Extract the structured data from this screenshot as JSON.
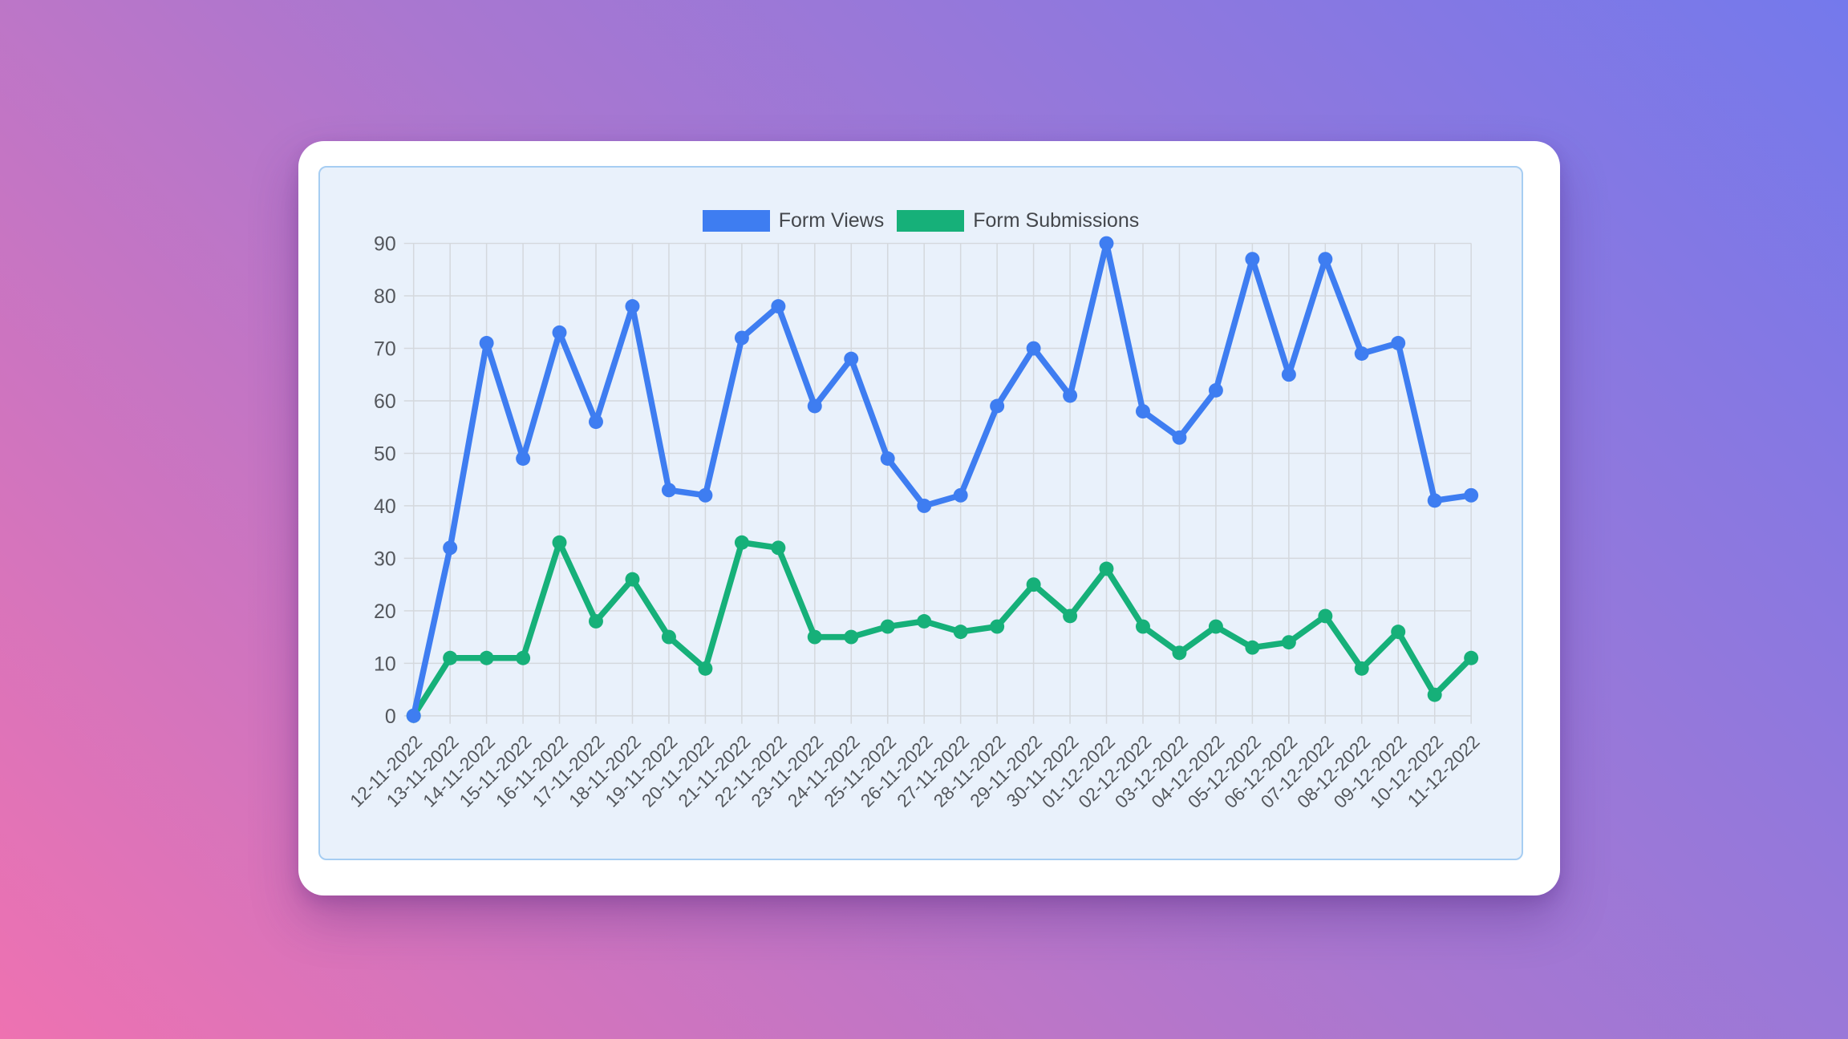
{
  "chart_data": {
    "type": "line",
    "title": "",
    "categories": [
      "12-11-2022",
      "13-11-2022",
      "14-11-2022",
      "15-11-2022",
      "16-11-2022",
      "17-11-2022",
      "18-11-2022",
      "19-11-2022",
      "20-11-2022",
      "21-11-2022",
      "22-11-2022",
      "23-11-2022",
      "24-11-2022",
      "25-11-2022",
      "26-11-2022",
      "27-11-2022",
      "28-11-2022",
      "29-11-2022",
      "30-11-2022",
      "01-12-2022",
      "02-12-2022",
      "03-12-2022",
      "04-12-2022",
      "05-12-2022",
      "06-12-2022",
      "07-12-2022",
      "08-12-2022",
      "09-12-2022",
      "10-12-2022",
      "11-12-2022"
    ],
    "series": [
      {
        "name": "Form Views",
        "color": "#3e7df1",
        "values": [
          0,
          32,
          71,
          49,
          73,
          56,
          78,
          43,
          42,
          72,
          78,
          59,
          68,
          49,
          40,
          42,
          59,
          70,
          61,
          90,
          58,
          53,
          62,
          87,
          65,
          87,
          69,
          71,
          41,
          42
        ]
      },
      {
        "name": "Form Submissions",
        "color": "#16b079",
        "values": [
          0,
          11,
          11,
          11,
          33,
          18,
          26,
          15,
          9,
          33,
          32,
          15,
          15,
          17,
          18,
          16,
          17,
          25,
          19,
          28,
          17,
          12,
          17,
          13,
          14,
          19,
          9,
          16,
          4,
          11
        ]
      }
    ],
    "xlabel": "",
    "ylabel": "",
    "ylim": [
      0,
      90
    ],
    "yticks": [
      0,
      10,
      20,
      30,
      40,
      50,
      60,
      70,
      80,
      90
    ],
    "grid": true,
    "legend_position": "top-center"
  },
  "colors": {
    "background_gradient_start": "#ee72b1",
    "background_gradient_mid": "#a977d0",
    "background_gradient_end": "#7479ec",
    "card_background": "#ffffff",
    "panel_background": "#e9f1fb",
    "panel_border": "#a6cdf2",
    "grid_line": "#d4d8dd",
    "tick_text": "#54575c",
    "legend_text": "#44474c"
  }
}
